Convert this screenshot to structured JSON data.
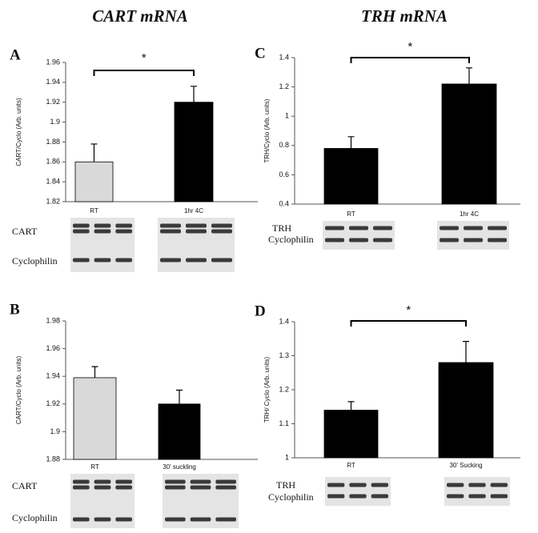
{
  "column_titles": [
    "CART mRNA",
    "TRH mRNA"
  ],
  "chart_data": [
    {
      "type": "bar",
      "panel": "A",
      "y_label": "CART/Cyclo (Arb. units)",
      "categories": [
        "RT",
        "1hr 4C"
      ],
      "values": [
        1.86,
        1.92
      ],
      "errors": [
        0.018,
        0.016
      ],
      "colors": [
        "#d9d9d9",
        "#000000"
      ],
      "ylim": [
        1.82,
        1.96
      ],
      "yticks": [
        1.82,
        1.84,
        1.86,
        1.88,
        1.9,
        1.92,
        1.94,
        1.96
      ],
      "annotation": "*",
      "blot_labels": [
        "CART",
        "Cyclophilin"
      ]
    },
    {
      "type": "bar",
      "panel": "B",
      "y_label": "CART/Cyclo (Arb. units)",
      "categories": [
        "RT",
        "30' suckling"
      ],
      "values": [
        1.939,
        1.92
      ],
      "errors": [
        0.008,
        0.01
      ],
      "colors": [
        "#d9d9d9",
        "#000000"
      ],
      "ylim": [
        1.88,
        1.98
      ],
      "yticks": [
        1.88,
        1.9,
        1.92,
        1.94,
        1.96,
        1.98
      ],
      "blot_labels": [
        "CART",
        "Cyclophilin"
      ]
    },
    {
      "type": "bar",
      "panel": "C",
      "y_label": "TRH/Cyclo (Arb. units)",
      "categories": [
        "RT",
        "1hr 4C"
      ],
      "values": [
        0.78,
        1.22
      ],
      "errors": [
        0.08,
        0.11
      ],
      "colors": [
        "#000000",
        "#000000"
      ],
      "ylim": [
        0.4,
        1.4
      ],
      "yticks": [
        0.4,
        0.6,
        0.8,
        1,
        1.2,
        1.4
      ],
      "annotation": "*",
      "blot_labels": [
        "TRH",
        "Cyclophilin"
      ]
    },
    {
      "type": "bar",
      "panel": "D",
      "y_label": "TRH/ Cyclo (Arb. units)",
      "categories": [
        "RT",
        "30' Sucking"
      ],
      "values": [
        1.14,
        1.28
      ],
      "errors": [
        0.025,
        0.062
      ],
      "colors": [
        "#000000",
        "#000000"
      ],
      "ylim": [
        1,
        1.4
      ],
      "yticks": [
        1,
        1.1,
        1.2,
        1.3,
        1.4
      ],
      "annotation": "*",
      "blot_labels": [
        "TRH",
        "Cyclophilin"
      ]
    }
  ]
}
